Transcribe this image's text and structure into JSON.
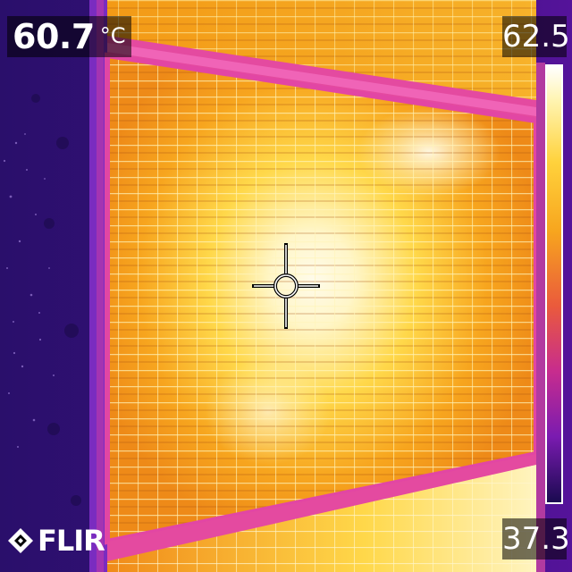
{
  "measurement": {
    "spot_value": "60.7",
    "unit": "°C"
  },
  "scale": {
    "max": "62.5",
    "min": "37.3"
  },
  "brand": {
    "logo_text": "FLIR"
  },
  "palette": {
    "hot": "#fffbe8",
    "warm": "#ffd23c",
    "mid": "#f39a16",
    "cool": "#e04a8a",
    "cold": "#7a1bb0",
    "coldest": "#2a0f6b"
  }
}
